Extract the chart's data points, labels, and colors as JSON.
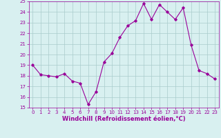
{
  "x": [
    0,
    1,
    2,
    3,
    4,
    5,
    6,
    7,
    8,
    9,
    10,
    11,
    12,
    13,
    14,
    15,
    16,
    17,
    18,
    19,
    20,
    21,
    22,
    23
  ],
  "y": [
    19.0,
    18.1,
    18.0,
    17.9,
    18.2,
    17.5,
    17.3,
    15.3,
    16.5,
    19.3,
    20.1,
    21.6,
    22.7,
    23.2,
    24.8,
    23.3,
    24.7,
    24.0,
    23.3,
    24.4,
    20.9,
    18.5,
    18.2,
    17.7
  ],
  "line_color": "#990099",
  "marker": "D",
  "marker_size": 1.8,
  "bg_color": "#d8f0f0",
  "grid_color": "#aacccc",
  "xlabel": "Windchill (Refroidissement éolien,°C)",
  "xlabel_color": "#990099",
  "ylim": [
    15,
    25
  ],
  "xlim": [
    -0.5,
    23.5
  ],
  "yticks": [
    15,
    16,
    17,
    18,
    19,
    20,
    21,
    22,
    23,
    24,
    25
  ],
  "xticks": [
    0,
    1,
    2,
    3,
    4,
    5,
    6,
    7,
    8,
    9,
    10,
    11,
    12,
    13,
    14,
    15,
    16,
    17,
    18,
    19,
    20,
    21,
    22,
    23
  ],
  "tick_color": "#990099",
  "tick_label_fontsize": 5.0,
  "xlabel_fontsize": 6.0,
  "linewidth": 0.8
}
